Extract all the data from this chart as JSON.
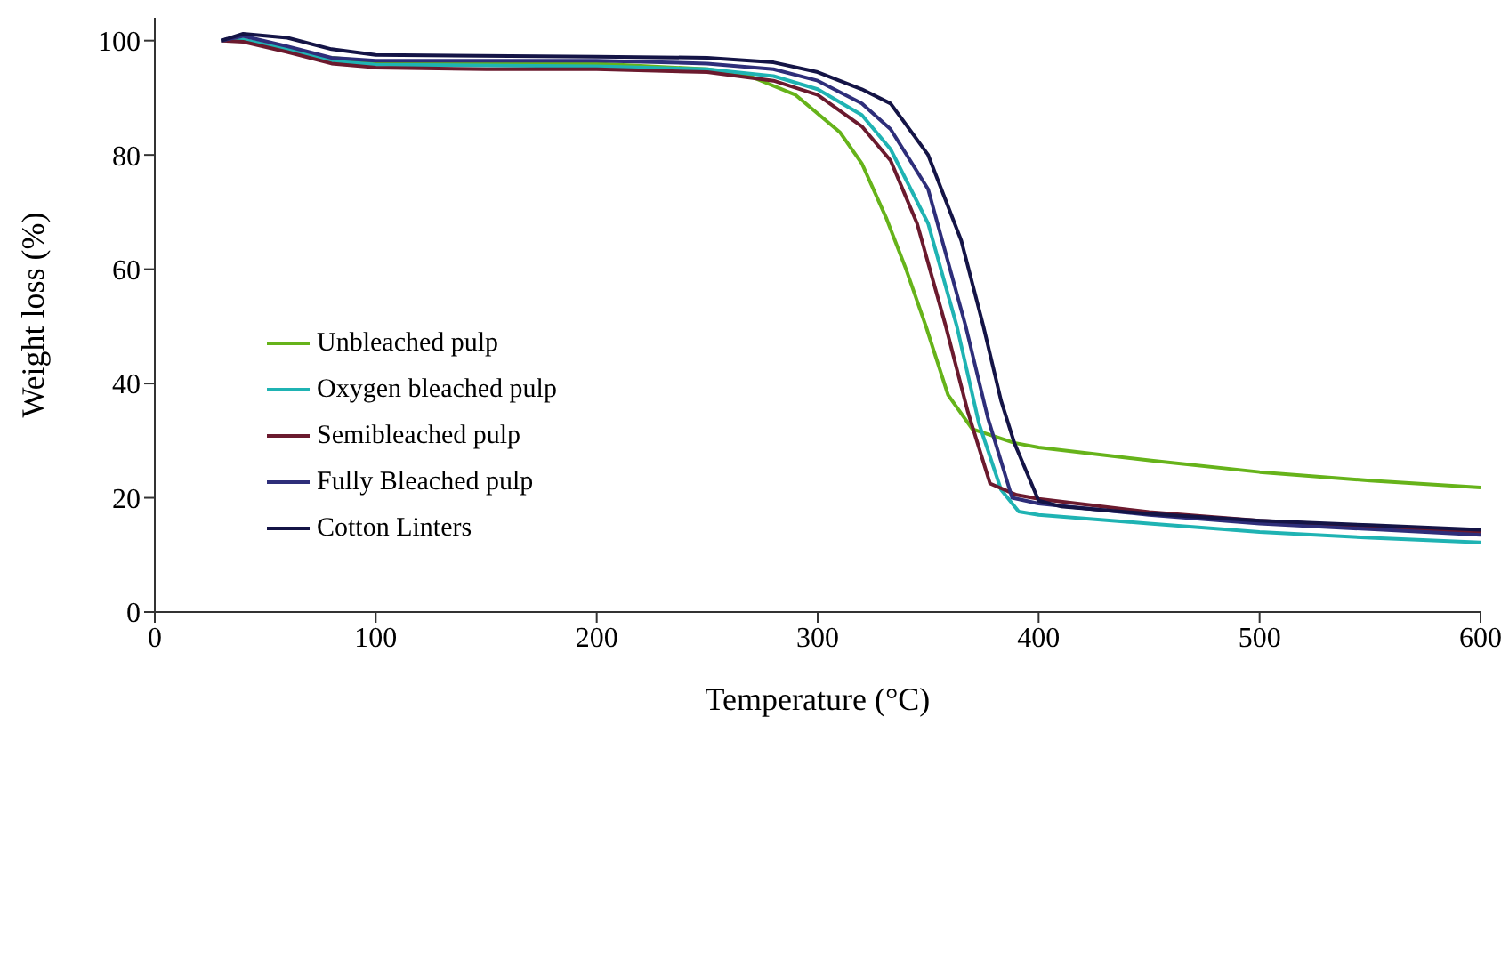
{
  "chart_data": {
    "type": "line",
    "xlabel": "Temperature (°C)",
    "ylabel": "Weight loss (%)",
    "xlim": [
      0,
      600
    ],
    "xticks": [
      0,
      100,
      200,
      300,
      400,
      500,
      600
    ],
    "ylim": [
      0,
      104
    ],
    "yticks": [
      0,
      20,
      40,
      60,
      80,
      100
    ],
    "legend": "left",
    "marker": "none",
    "line_style": "solid",
    "series": [
      {
        "name": "Unbleached pulp",
        "color": "#66b31a",
        "x": [
          80,
          100,
          200,
          250,
          268,
          290,
          310,
          320,
          331,
          340,
          349,
          359,
          370,
          389,
          400,
          451,
          500,
          550,
          600
        ],
        "values": [
          97,
          96.3,
          96,
          95,
          94,
          90.5,
          84,
          78.5,
          69,
          60,
          50,
          38,
          32,
          29.6,
          28.8,
          26.5,
          24.5,
          23,
          21.8
        ]
      },
      {
        "name": "Oxygen bleached pulp",
        "color": "#1fb3b3",
        "x": [
          30,
          40,
          60,
          80,
          100,
          200,
          250,
          280,
          300,
          320,
          333,
          350,
          363,
          373,
          383,
          391,
          400,
          450,
          500,
          550,
          600
        ],
        "values": [
          100,
          100.2,
          98.5,
          96.5,
          95.8,
          95.5,
          95,
          93.8,
          91.5,
          87,
          81,
          68,
          50,
          33,
          21.4,
          17.6,
          17,
          15.5,
          14,
          13,
          12.2
        ]
      },
      {
        "name": "Semibleached pulp",
        "color": "#6b1a2e",
        "x": [
          30,
          40,
          60,
          80,
          100,
          150,
          200,
          250,
          280,
          300,
          320,
          333,
          345,
          358,
          368,
          378,
          390,
          400,
          450,
          500,
          550,
          600
        ],
        "values": [
          100,
          99.8,
          98,
          96,
          95.3,
          95,
          95,
          94.5,
          93,
          90.5,
          85,
          79,
          68,
          50,
          35,
          22.5,
          20.5,
          19.8,
          17.5,
          16,
          15,
          14
        ]
      },
      {
        "name": "Fully Bleached pulp",
        "color": "#2e2e7a",
        "x": [
          30,
          40,
          60,
          80,
          100,
          200,
          250,
          280,
          300,
          320,
          333,
          350,
          367,
          377,
          388,
          400,
          450,
          500,
          550,
          600
        ],
        "values": [
          100,
          100.8,
          99,
          97,
          96.5,
          96.5,
          96,
          95,
          93,
          89,
          84.5,
          74,
          50,
          34,
          20,
          19,
          17,
          15.5,
          14.5,
          13.5
        ]
      },
      {
        "name": "Cotton Linters",
        "color": "#141446",
        "x": [
          30,
          40,
          60,
          80,
          100,
          200,
          250,
          280,
          300,
          320,
          333,
          350,
          365,
          375,
          383,
          389,
          400,
          410,
          450,
          500,
          550,
          600
        ],
        "values": [
          100,
          101.2,
          100.5,
          98.5,
          97.5,
          97.2,
          97,
          96.2,
          94.5,
          91.5,
          89,
          80,
          65,
          50,
          37,
          29.6,
          19.5,
          18.5,
          17.2,
          16,
          15.2,
          14.4
        ]
      }
    ]
  }
}
